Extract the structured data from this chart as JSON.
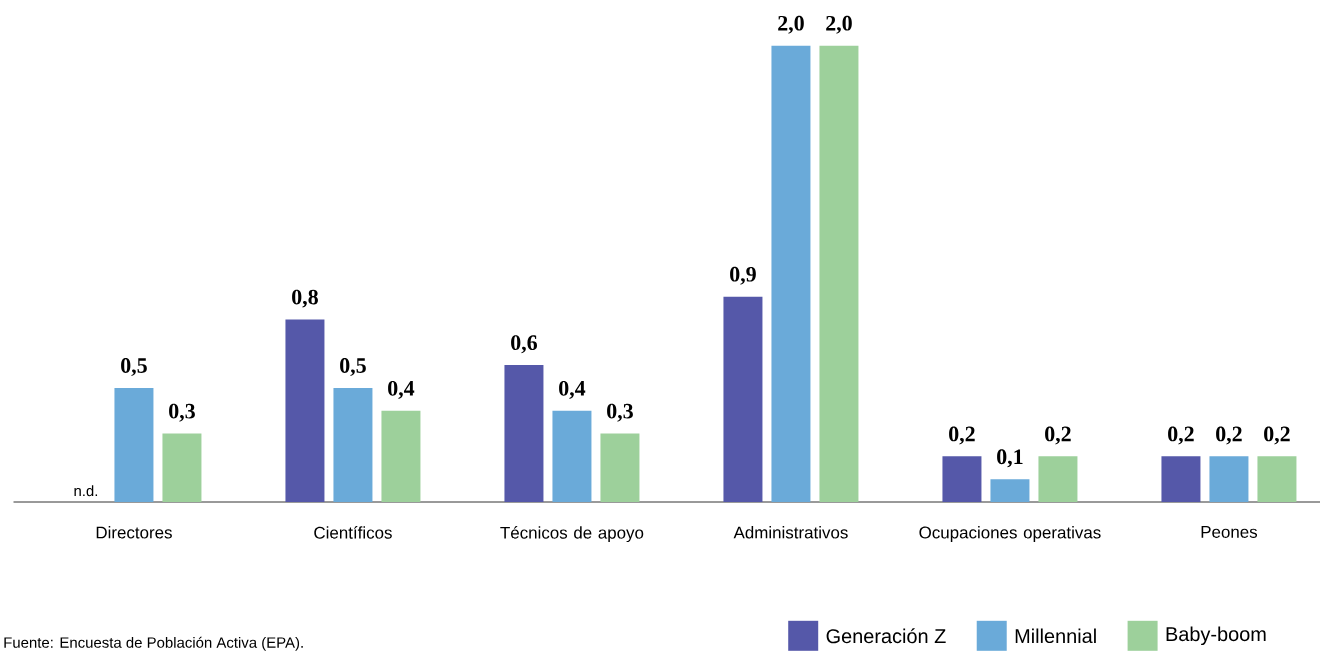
{
  "chart_data": {
    "type": "bar",
    "categories": [
      "Directores",
      "Científicos",
      "Técnicos de apoyo",
      "Administrativos",
      "Ocupaciones operativas",
      "Peones"
    ],
    "series": [
      {
        "name": "Generación Z",
        "color": "#5558a9",
        "values": [
          null,
          0.8,
          0.6,
          0.9,
          0.2,
          0.2
        ],
        "value_labels": [
          "n.d.",
          "0,8",
          "0,6",
          "0,9",
          "0,2",
          "0,2"
        ]
      },
      {
        "name": "Millennial",
        "color": "#6aaad9",
        "values": [
          0.5,
          0.5,
          0.4,
          2.0,
          0.1,
          0.2
        ],
        "value_labels": [
          "0,5",
          "0,5",
          "0,4",
          "2,0",
          "0,1",
          "0,2"
        ]
      },
      {
        "name": "Baby-boom",
        "color": "#9dd09b",
        "values": [
          0.3,
          0.4,
          0.3,
          2.0,
          0.2,
          0.2
        ],
        "value_labels": [
          "0,3",
          "0,4",
          "0,3",
          "2,0",
          "0,2",
          "0,2"
        ]
      }
    ],
    "legend": "bottom right",
    "annotations": [
      "Fuente: Encuesta de Población Activa (EPA)."
    ]
  }
}
